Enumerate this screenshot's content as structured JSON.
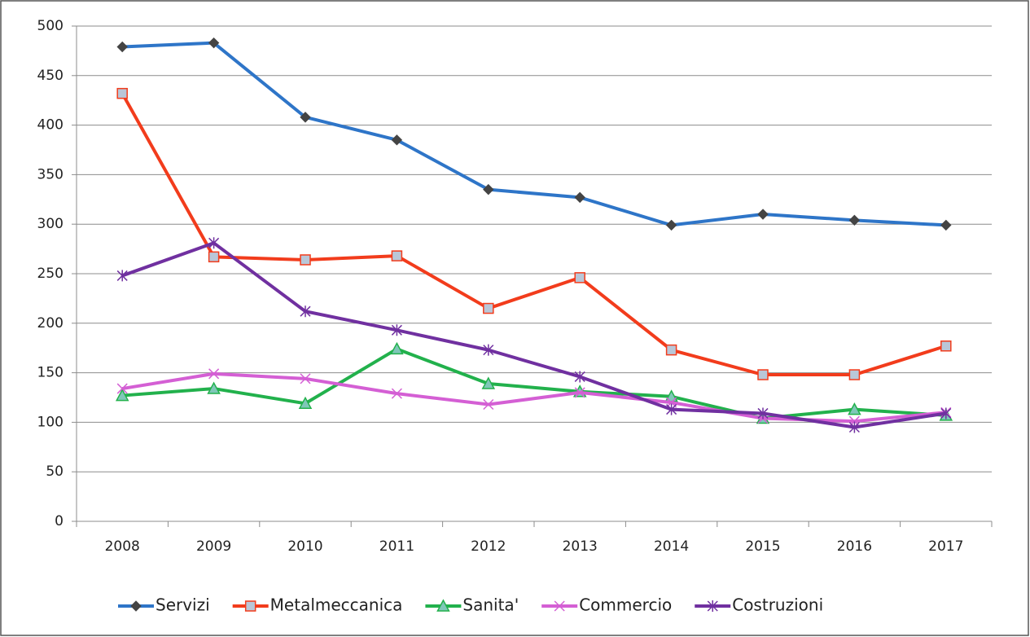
{
  "chart_data": {
    "type": "line",
    "categories": [
      "2008",
      "2009",
      "2010",
      "2011",
      "2012",
      "2013",
      "2014",
      "2015",
      "2016",
      "2017"
    ],
    "series": [
      {
        "name": "Servizi",
        "color": "#2e75c8",
        "marker": "diamond",
        "values": [
          479,
          483,
          408,
          385,
          335,
          327,
          299,
          310,
          304,
          299
        ]
      },
      {
        "name": "Metalmeccanica",
        "color": "#f23c1c",
        "marker": "square",
        "values": [
          432,
          267,
          264,
          268,
          215,
          246,
          173,
          148,
          148,
          177
        ]
      },
      {
        "name": "Sanita'",
        "color": "#22b14c",
        "marker": "triangle",
        "values": [
          127,
          134,
          119,
          174,
          139,
          131,
          126,
          104,
          113,
          107
        ]
      },
      {
        "name": "Commercio",
        "color": "#d45fd4",
        "marker": "x",
        "values": [
          134,
          149,
          144,
          129,
          118,
          130,
          120,
          104,
          101,
          110
        ]
      },
      {
        "name": "Costruzioni",
        "color": "#7030a0",
        "marker": "star",
        "values": [
          248,
          281,
          212,
          193,
          173,
          146,
          113,
          109,
          95,
          109
        ]
      }
    ],
    "ylim": [
      0,
      500
    ],
    "yticks": [
      0,
      50,
      100,
      150,
      200,
      250,
      300,
      350,
      400,
      450,
      500
    ],
    "grid": true,
    "legend": "bottom"
  }
}
